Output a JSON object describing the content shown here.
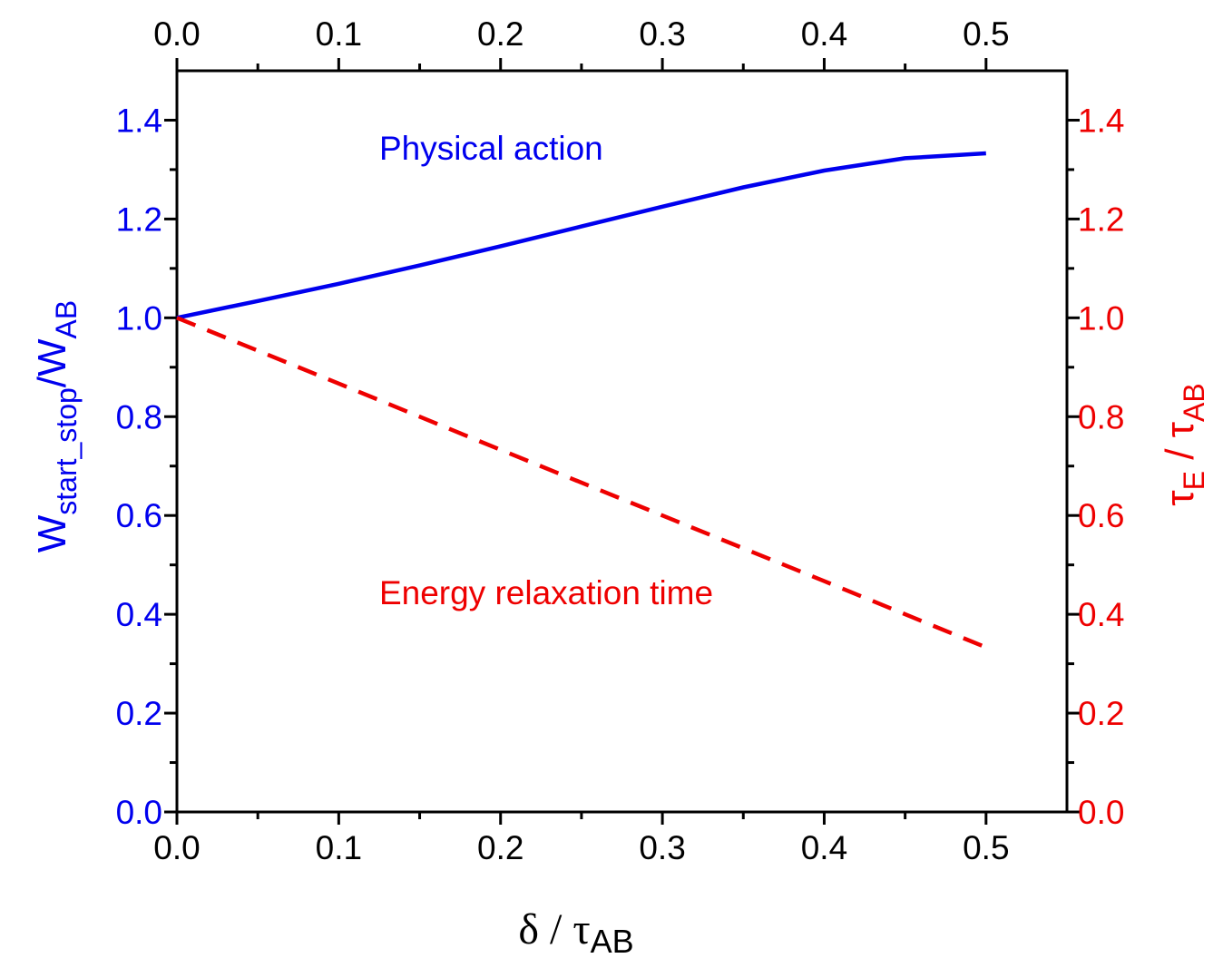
{
  "chart_data": {
    "type": "line",
    "x_axis": {
      "label_symbol": "δ / τ",
      "label_subscript": "AB",
      "range": [
        0.0,
        0.55
      ],
      "ticks": [
        0.0,
        0.1,
        0.2,
        0.3,
        0.4,
        0.5
      ],
      "tick_labels": [
        "0.0",
        "0.1",
        "0.2",
        "0.3",
        "0.4",
        "0.5"
      ],
      "minor_step": 0.05
    },
    "x_top_axis": {
      "tick_labels": [
        "0.0",
        "0.1",
        "0.2",
        "0.3",
        "0.4",
        "0.5"
      ]
    },
    "y_left_axis": {
      "label_parts": [
        "W",
        "start_stop",
        "/W",
        "AB"
      ],
      "range": [
        0.0,
        1.5
      ],
      "ticks": [
        0.0,
        0.2,
        0.4,
        0.6,
        0.8,
        1.0,
        1.2,
        1.4
      ],
      "tick_labels": [
        "0.0",
        "0.2",
        "0.4",
        "0.6",
        "0.8",
        "1.0",
        "1.2",
        "1.4"
      ],
      "minor_step": 0.1,
      "color": "#0000ee"
    },
    "y_right_axis": {
      "label_parts": [
        "τ",
        "E",
        " / τ",
        "AB"
      ],
      "range": [
        0.0,
        1.5
      ],
      "ticks": [
        0.0,
        0.2,
        0.4,
        0.6,
        0.8,
        1.0,
        1.2,
        1.4
      ],
      "tick_labels": [
        "0.0",
        "0.2",
        "0.4",
        "0.6",
        "0.8",
        "1.0",
        "1.2",
        "1.4"
      ],
      "color": "#ee0000"
    },
    "series": [
      {
        "name": "Physical action",
        "axis": "left",
        "style": "solid",
        "color": "#0000ee",
        "x": [
          0.0,
          0.05,
          0.1,
          0.15,
          0.2,
          0.25,
          0.3,
          0.35,
          0.4,
          0.45,
          0.5
        ],
        "y": [
          1.0,
          1.034,
          1.069,
          1.106,
          1.145,
          1.185,
          1.225,
          1.264,
          1.298,
          1.323,
          1.333
        ]
      },
      {
        "name": "Energy relaxation time",
        "axis": "right",
        "style": "dashed",
        "color": "#ee0000",
        "x": [
          0.0,
          0.1,
          0.2,
          0.3,
          0.4,
          0.5
        ],
        "y": [
          1.0,
          0.867,
          0.733,
          0.6,
          0.467,
          0.333
        ]
      }
    ],
    "annotations": [
      {
        "text": "Physical action",
        "x": 0.125,
        "y": 1.32,
        "color": "#0000ee"
      },
      {
        "text": "Energy relaxation time",
        "x": 0.125,
        "y": 0.42,
        "color": "#ee0000"
      }
    ]
  }
}
